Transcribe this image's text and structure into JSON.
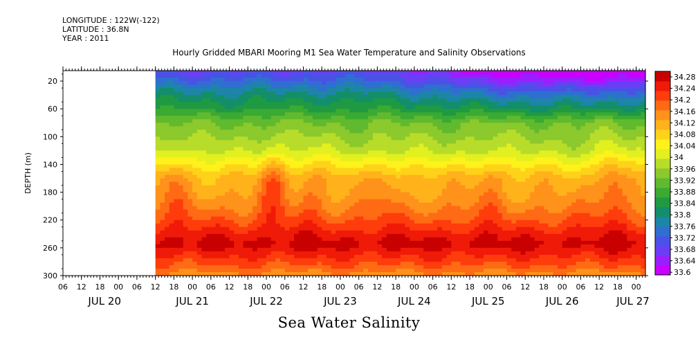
{
  "header": {
    "longitude": "LONGITUDE : 122W(-122)",
    "latitude": "LATITUDE : 36.8N",
    "year": "YEAR : 2011"
  },
  "title": "Hourly Gridded MBARI Mooring M1 Sea Water Temperature and Salinity Observations",
  "variable_label": "Sea Water Salinity",
  "chart_data": {
    "type": "heatmap",
    "title": "Hourly Gridded MBARI Mooring M1 Sea Water Temperature and Salinity Observations",
    "variable": "Sea Water Salinity",
    "ylabel": "DEPTH (m)",
    "y_ticks": [
      20,
      60,
      100,
      140,
      180,
      220,
      260,
      300
    ],
    "y_range": [
      5,
      300
    ],
    "y_inverted": true,
    "x_range_hours": [
      -18,
      171
    ],
    "data_start_hour": 12,
    "x_hour_ticks": [
      "06",
      "12",
      "18",
      "00",
      "06",
      "12",
      "18",
      "00",
      "06",
      "12",
      "18",
      "00",
      "06",
      "12",
      "18",
      "00",
      "06",
      "12",
      "18",
      "00",
      "06",
      "12",
      "18",
      "00",
      "06",
      "12",
      "18",
      "00",
      "06",
      "12",
      "18",
      "00"
    ],
    "x_day_labels": [
      "JUL 20",
      "JUL 21",
      "JUL 22",
      "JUL 23",
      "JUL 24",
      "JUL 25",
      "JUL 26",
      "JUL 27"
    ],
    "colorbar_levels": [
      "34.28",
      "34.24",
      "34.2",
      "34.16",
      "34.12",
      "34.08",
      "34.04",
      "34",
      "33.96",
      "33.92",
      "33.88",
      "33.84",
      "33.8",
      "33.76",
      "33.72",
      "33.68",
      "33.64",
      "33.6"
    ],
    "value_range": [
      33.6,
      34.3
    ],
    "colors": [
      "#c800ff",
      "#9a1fff",
      "#6b3ef5",
      "#4a52e6",
      "#2f6fd0",
      "#1d85a8",
      "#138e6a",
      "#1f9a42",
      "#3aaa32",
      "#61ba2e",
      "#8bc92c",
      "#b8dc2a",
      "#e2f020",
      "#fff21a",
      "#ffd21a",
      "#ffb21a",
      "#ff921a",
      "#ff6a14",
      "#ff3c0c",
      "#f01a08",
      "#c80000"
    ],
    "profile": [
      {
        "depth": 5,
        "value": 33.69
      },
      {
        "depth": 20,
        "value": 33.74
      },
      {
        "depth": 40,
        "value": 33.81
      },
      {
        "depth": 60,
        "value": 33.86
      },
      {
        "depth": 80,
        "value": 33.93
      },
      {
        "depth": 100,
        "value": 33.96
      },
      {
        "depth": 120,
        "value": 33.99
      },
      {
        "depth": 140,
        "value": 34.05
      },
      {
        "depth": 160,
        "value": 34.11
      },
      {
        "depth": 180,
        "value": 34.13
      },
      {
        "depth": 200,
        "value": 34.16
      },
      {
        "depth": 220,
        "value": 34.2
      },
      {
        "depth": 240,
        "value": 34.25
      },
      {
        "depth": 255,
        "value": 34.28
      },
      {
        "depth": 270,
        "value": 34.24
      },
      {
        "depth": 285,
        "value": 34.2
      },
      {
        "depth": 300,
        "value": 34.15
      }
    ],
    "surface_freshening": [
      {
        "hour": 12,
        "value": 0.0
      },
      {
        "hour": 84,
        "value": 0.0
      },
      {
        "hour": 100,
        "value": 0.04
      },
      {
        "hour": 120,
        "value": 0.09
      },
      {
        "hour": 145,
        "value": 0.12
      },
      {
        "hour": 171,
        "value": 0.1
      }
    ],
    "upwelling_events": [
      {
        "hour": 18,
        "value": 0.05
      },
      {
        "hour": 50,
        "value": 0.08
      },
      {
        "hour": 62,
        "value": 0.04
      },
      {
        "hour": 86,
        "value": 0.03
      },
      {
        "hour": 120,
        "value": 0.04
      },
      {
        "hour": 160,
        "value": 0.07
      }
    ]
  }
}
